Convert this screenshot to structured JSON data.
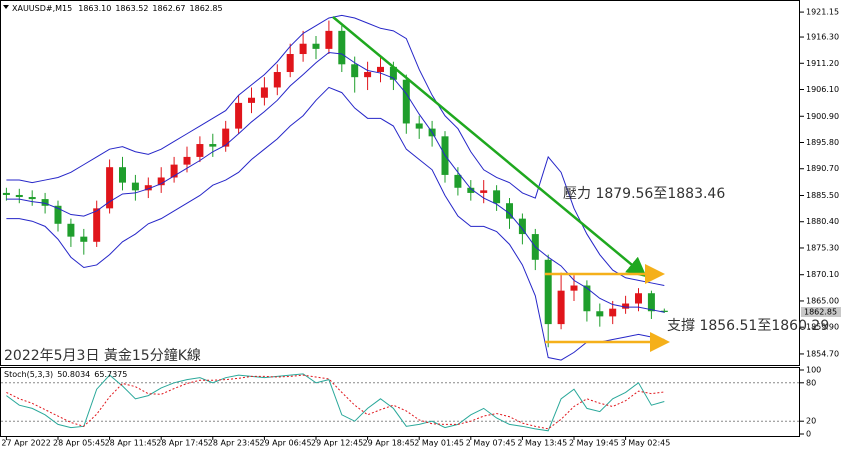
{
  "header": {
    "symbol": "XAUUSD#,M15",
    "ohlc": [
      {
        "value": 1863.1,
        "label": "1863.10"
      },
      1863.52,
      1862.67,
      1862.85
    ]
  },
  "annotations": {
    "resistance": "壓力 1879.56至1883.46",
    "support": "支撐 1856.51至1860.29",
    "caption": "2022年5月3日 黃金15分鐘K線"
  },
  "chart_data": [
    {
      "type": "candlestick",
      "categories": [
        "27 Apr 2022",
        null,
        null,
        null,
        "28 Apr 05:45",
        null,
        null,
        null,
        "28 Apr 11:45",
        null,
        null,
        null,
        "28 Apr 17:45",
        null,
        null,
        null,
        "28 Apr 23:45",
        null,
        null,
        null,
        "29 Apr 06:45",
        null,
        null,
        null,
        "29 Apr 12:45",
        null,
        null,
        null,
        "29 Apr 18:45",
        null,
        null,
        null,
        "2 May 01:45",
        null,
        null,
        null,
        "2 May 07:45",
        null,
        null,
        null,
        "2 May 13:45",
        null,
        null,
        null,
        "2 May 19:45",
        null,
        null,
        null,
        "3 May 02:45",
        null,
        null,
        null
      ],
      "open": [
        1886.0,
        1885.6,
        1885.2,
        1884.8,
        1883.5,
        1880.0,
        1877.5,
        1876.5,
        1883.0,
        1891.0,
        1888.0,
        1886.5,
        1887.5,
        1889.0,
        1891.5,
        1893.0,
        1895.5,
        1895.0,
        1898.5,
        1903.5,
        1904.5,
        1906.5,
        1909.5,
        1913.0,
        1915.0,
        1914.0,
        1917.5,
        1911.0,
        1908.5,
        1909.5,
        1910.5,
        1908.0,
        1899.5,
        1898.5,
        1897.0,
        1889.5,
        1887.0,
        1886.0,
        1886.5,
        1884.0,
        1881.0,
        1878.0,
        1873.0,
        1860.5,
        1867.0,
        1868.0,
        1863.0,
        1862.0,
        1863.5,
        1864.5,
        1866.5,
        1863.1
      ],
      "high": [
        1887.0,
        1886.8,
        1886.5,
        1886.0,
        1884.5,
        1881.0,
        1879.0,
        1884.5,
        1892.5,
        1893.0,
        1889.5,
        1889.0,
        1891.0,
        1893.0,
        1895.0,
        1897.0,
        1897.5,
        1900.0,
        1905.0,
        1906.5,
        1908.5,
        1911.0,
        1915.0,
        1917.5,
        1916.5,
        1919.5,
        1918.5,
        1912.5,
        1911.5,
        1912.5,
        1911.5,
        1909.0,
        1901.0,
        1900.0,
        1898.0,
        1891.0,
        1888.5,
        1888.5,
        1887.5,
        1885.0,
        1882.0,
        1879.0,
        1874.0,
        1870.5,
        1870.0,
        1869.0,
        1864.5,
        1865.0,
        1866.0,
        1867.5,
        1867.0,
        1863.52
      ],
      "low": [
        1884.5,
        1884.0,
        1883.5,
        1882.0,
        1878.5,
        1875.5,
        1874.0,
        1875.5,
        1882.0,
        1886.5,
        1884.5,
        1885.0,
        1886.0,
        1888.0,
        1890.0,
        1892.0,
        1893.0,
        1894.0,
        1897.5,
        1901.5,
        1903.0,
        1905.0,
        1908.5,
        1911.5,
        1912.0,
        1913.0,
        1909.5,
        1905.5,
        1906.0,
        1907.5,
        1906.0,
        1897.5,
        1896.5,
        1895.0,
        1888.0,
        1885.5,
        1884.5,
        1884.0,
        1882.5,
        1879.0,
        1876.0,
        1871.0,
        1856.0,
        1859.5,
        1865.0,
        1861.0,
        1860.0,
        1860.5,
        1862.5,
        1863.0,
        1861.5,
        1862.67
      ],
      "close": [
        1885.6,
        1885.2,
        1884.8,
        1883.5,
        1880.0,
        1877.5,
        1876.5,
        1883.0,
        1891.0,
        1888.0,
        1886.5,
        1887.5,
        1889.0,
        1891.5,
        1893.0,
        1895.5,
        1895.0,
        1898.5,
        1903.5,
        1904.5,
        1906.5,
        1909.5,
        1913.0,
        1915.0,
        1914.0,
        1917.5,
        1911.0,
        1908.5,
        1909.5,
        1910.5,
        1908.0,
        1899.5,
        1898.5,
        1897.0,
        1889.5,
        1887.0,
        1886.0,
        1886.5,
        1884.0,
        1881.0,
        1878.0,
        1873.0,
        1860.5,
        1867.0,
        1868.0,
        1863.0,
        1862.0,
        1863.5,
        1864.5,
        1866.5,
        1863.0,
        1862.85
      ],
      "up_color": "#e0151b",
      "down_color": "#1f9e2c",
      "bands": {
        "color": "#2626c8",
        "upper": [
          1888.5,
          1888.5,
          1888.0,
          1888.5,
          1889.0,
          1890.0,
          1891.5,
          1893.0,
          1894.5,
          1895.0,
          1894.0,
          1893.5,
          1894.5,
          1896.0,
          1897.5,
          1899.0,
          1900.5,
          1902.0,
          1905.0,
          1907.0,
          1909.0,
          1911.5,
          1914.5,
          1917.0,
          1918.5,
          1920.0,
          1920.5,
          1920.0,
          1919.0,
          1918.0,
          1917.5,
          1916.0,
          1910.0,
          1905.0,
          1901.0,
          1898.5,
          1894.0,
          1890.5,
          1889.0,
          1888.0,
          1886.0,
          1885.0,
          1893.0,
          1890.0,
          1883.0,
          1878.0,
          1874.0,
          1871.0,
          1869.5,
          1869.0,
          1868.5,
          1868.0
        ],
        "middle": [
          1884.8,
          1884.8,
          1884.3,
          1884.0,
          1883.0,
          1881.8,
          1881.5,
          1882.5,
          1884.3,
          1885.8,
          1886.0,
          1886.8,
          1887.8,
          1889.3,
          1890.8,
          1892.3,
          1894.0,
          1895.3,
          1897.5,
          1899.8,
          1901.8,
          1904.0,
          1906.8,
          1909.0,
          1911.3,
          1913.3,
          1913.0,
          1911.3,
          1909.8,
          1909.3,
          1908.3,
          1905.3,
          1901.3,
          1897.8,
          1893.3,
          1890.0,
          1886.8,
          1885.0,
          1883.8,
          1882.0,
          1879.0,
          1875.5,
          1873.5,
          1871.8,
          1869.0,
          1867.5,
          1865.5,
          1864.3,
          1863.8,
          1863.8,
          1863.3,
          1862.8
        ],
        "lower": [
          1881.0,
          1881.0,
          1880.5,
          1879.5,
          1877.0,
          1873.5,
          1871.5,
          1872.0,
          1874.0,
          1876.5,
          1878.0,
          1880.0,
          1881.0,
          1882.5,
          1884.0,
          1885.5,
          1887.5,
          1888.5,
          1890.0,
          1892.5,
          1894.5,
          1896.5,
          1899.0,
          1901.0,
          1904.0,
          1906.5,
          1905.5,
          1902.5,
          1900.5,
          1900.5,
          1899.0,
          1894.5,
          1892.5,
          1890.5,
          1885.5,
          1881.5,
          1879.5,
          1879.5,
          1878.5,
          1876.0,
          1872.0,
          1866.0,
          1854.0,
          1853.5,
          1855.0,
          1857.0,
          1857.0,
          1857.5,
          1858.0,
          1858.5,
          1858.0,
          1857.5
        ]
      },
      "last_price": 1862.85,
      "ylim": [
        1852.55,
        1923.5
      ],
      "yticks": [
        1921.15,
        {
          "value": 1916.3,
          "label": "1916.30"
        },
        {
          "value": 1911.2,
          "label": "1911.20"
        },
        {
          "value": 1906.1,
          "label": "1906.10"
        },
        {
          "value": 1900.9,
          "label": "1900.90"
        },
        {
          "value": 1895.8,
          "label": "1895.80"
        },
        {
          "value": 1890.7,
          "label": "1890.70"
        },
        {
          "value": 1885.5,
          "label": "1885.50"
        },
        {
          "value": 1880.4,
          "label": "1880.40"
        },
        {
          "value": 1875.3,
          "label": "1875.30"
        },
        {
          "value": 1870.1,
          "label": "1870.10"
        },
        {
          "value": 1865.0,
          "label": "1865.00"
        },
        {
          "value": 1859.9,
          "label": "1859.90"
        },
        {
          "value": 1854.7,
          "label": "1854.70"
        }
      ]
    },
    {
      "type": "line",
      "title": "Stoch(5,3,3)",
      "series": [
        {
          "color": "#2aa89a",
          "dashed": false,
          "values": [
            60,
            45,
            40,
            30,
            15,
            10,
            12,
            70,
            92,
            75,
            55,
            60,
            72,
            80,
            85,
            88,
            80,
            88,
            92,
            90,
            88,
            90,
            92,
            94,
            80,
            85,
            30,
            20,
            40,
            55,
            40,
            12,
            15,
            20,
            10,
            15,
            30,
            40,
            25,
            15,
            12,
            8,
            5,
            55,
            70,
            40,
            35,
            55,
            65,
            80,
            45,
            50.8034
          ]
        },
        {
          "color": "#e0151b",
          "dashed": true,
          "values": [
            65,
            55,
            48,
            38,
            28,
            18,
            12,
            31,
            58,
            79,
            74,
            63,
            62,
            71,
            79,
            84,
            84,
            85,
            87,
            90,
            90,
            89,
            90,
            92,
            89,
            86,
            65,
            45,
            30,
            38,
            45,
            36,
            22,
            16,
            15,
            15,
            20,
            28,
            32,
            27,
            17,
            12,
            8,
            23,
            43,
            55,
            48,
            43,
            52,
            67,
            63,
            65.7375
          ]
        }
      ],
      "ylim": [
        0,
        100
      ],
      "yticks": [
        0,
        20,
        80,
        100
      ],
      "grid": [
        20,
        80
      ]
    }
  ]
}
